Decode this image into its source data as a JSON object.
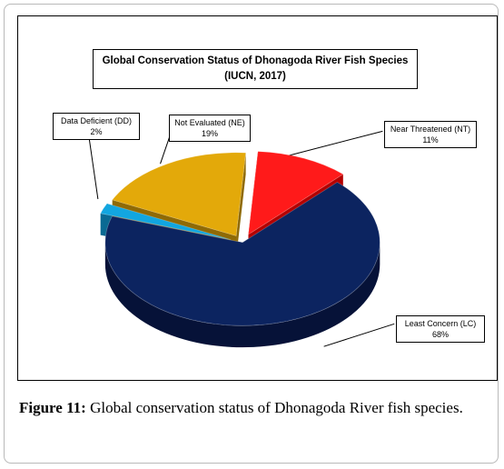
{
  "chart_data": {
    "type": "pie",
    "title_line1": "Global Conservation Status of Dhonagoda River Fish Species",
    "title_line2": "(IUCN, 2017)",
    "slices": [
      {
        "label": "Near Threatened (NT)",
        "percent_label": "11%",
        "value": 11,
        "color": "#ff1a1a",
        "side": "#b30000"
      },
      {
        "label": "Least Concern (LC)",
        "percent_label": "68%",
        "value": 68,
        "color": "#0c2460",
        "side": "#061238"
      },
      {
        "label": "Data Deficient (DD)",
        "percent_label": "2%",
        "value": 2,
        "color": "#12a6e0",
        "side": "#0a6a93"
      },
      {
        "label": "Not Evaluated (NE)",
        "percent_label": "19%",
        "value": 19,
        "color": "#e3a90a",
        "side": "#8f6a06"
      }
    ],
    "exploded": true,
    "style": "3d"
  },
  "caption": {
    "number": "Figure 11:",
    "text": " Global conservation status of Dhonagoda River fish species."
  }
}
